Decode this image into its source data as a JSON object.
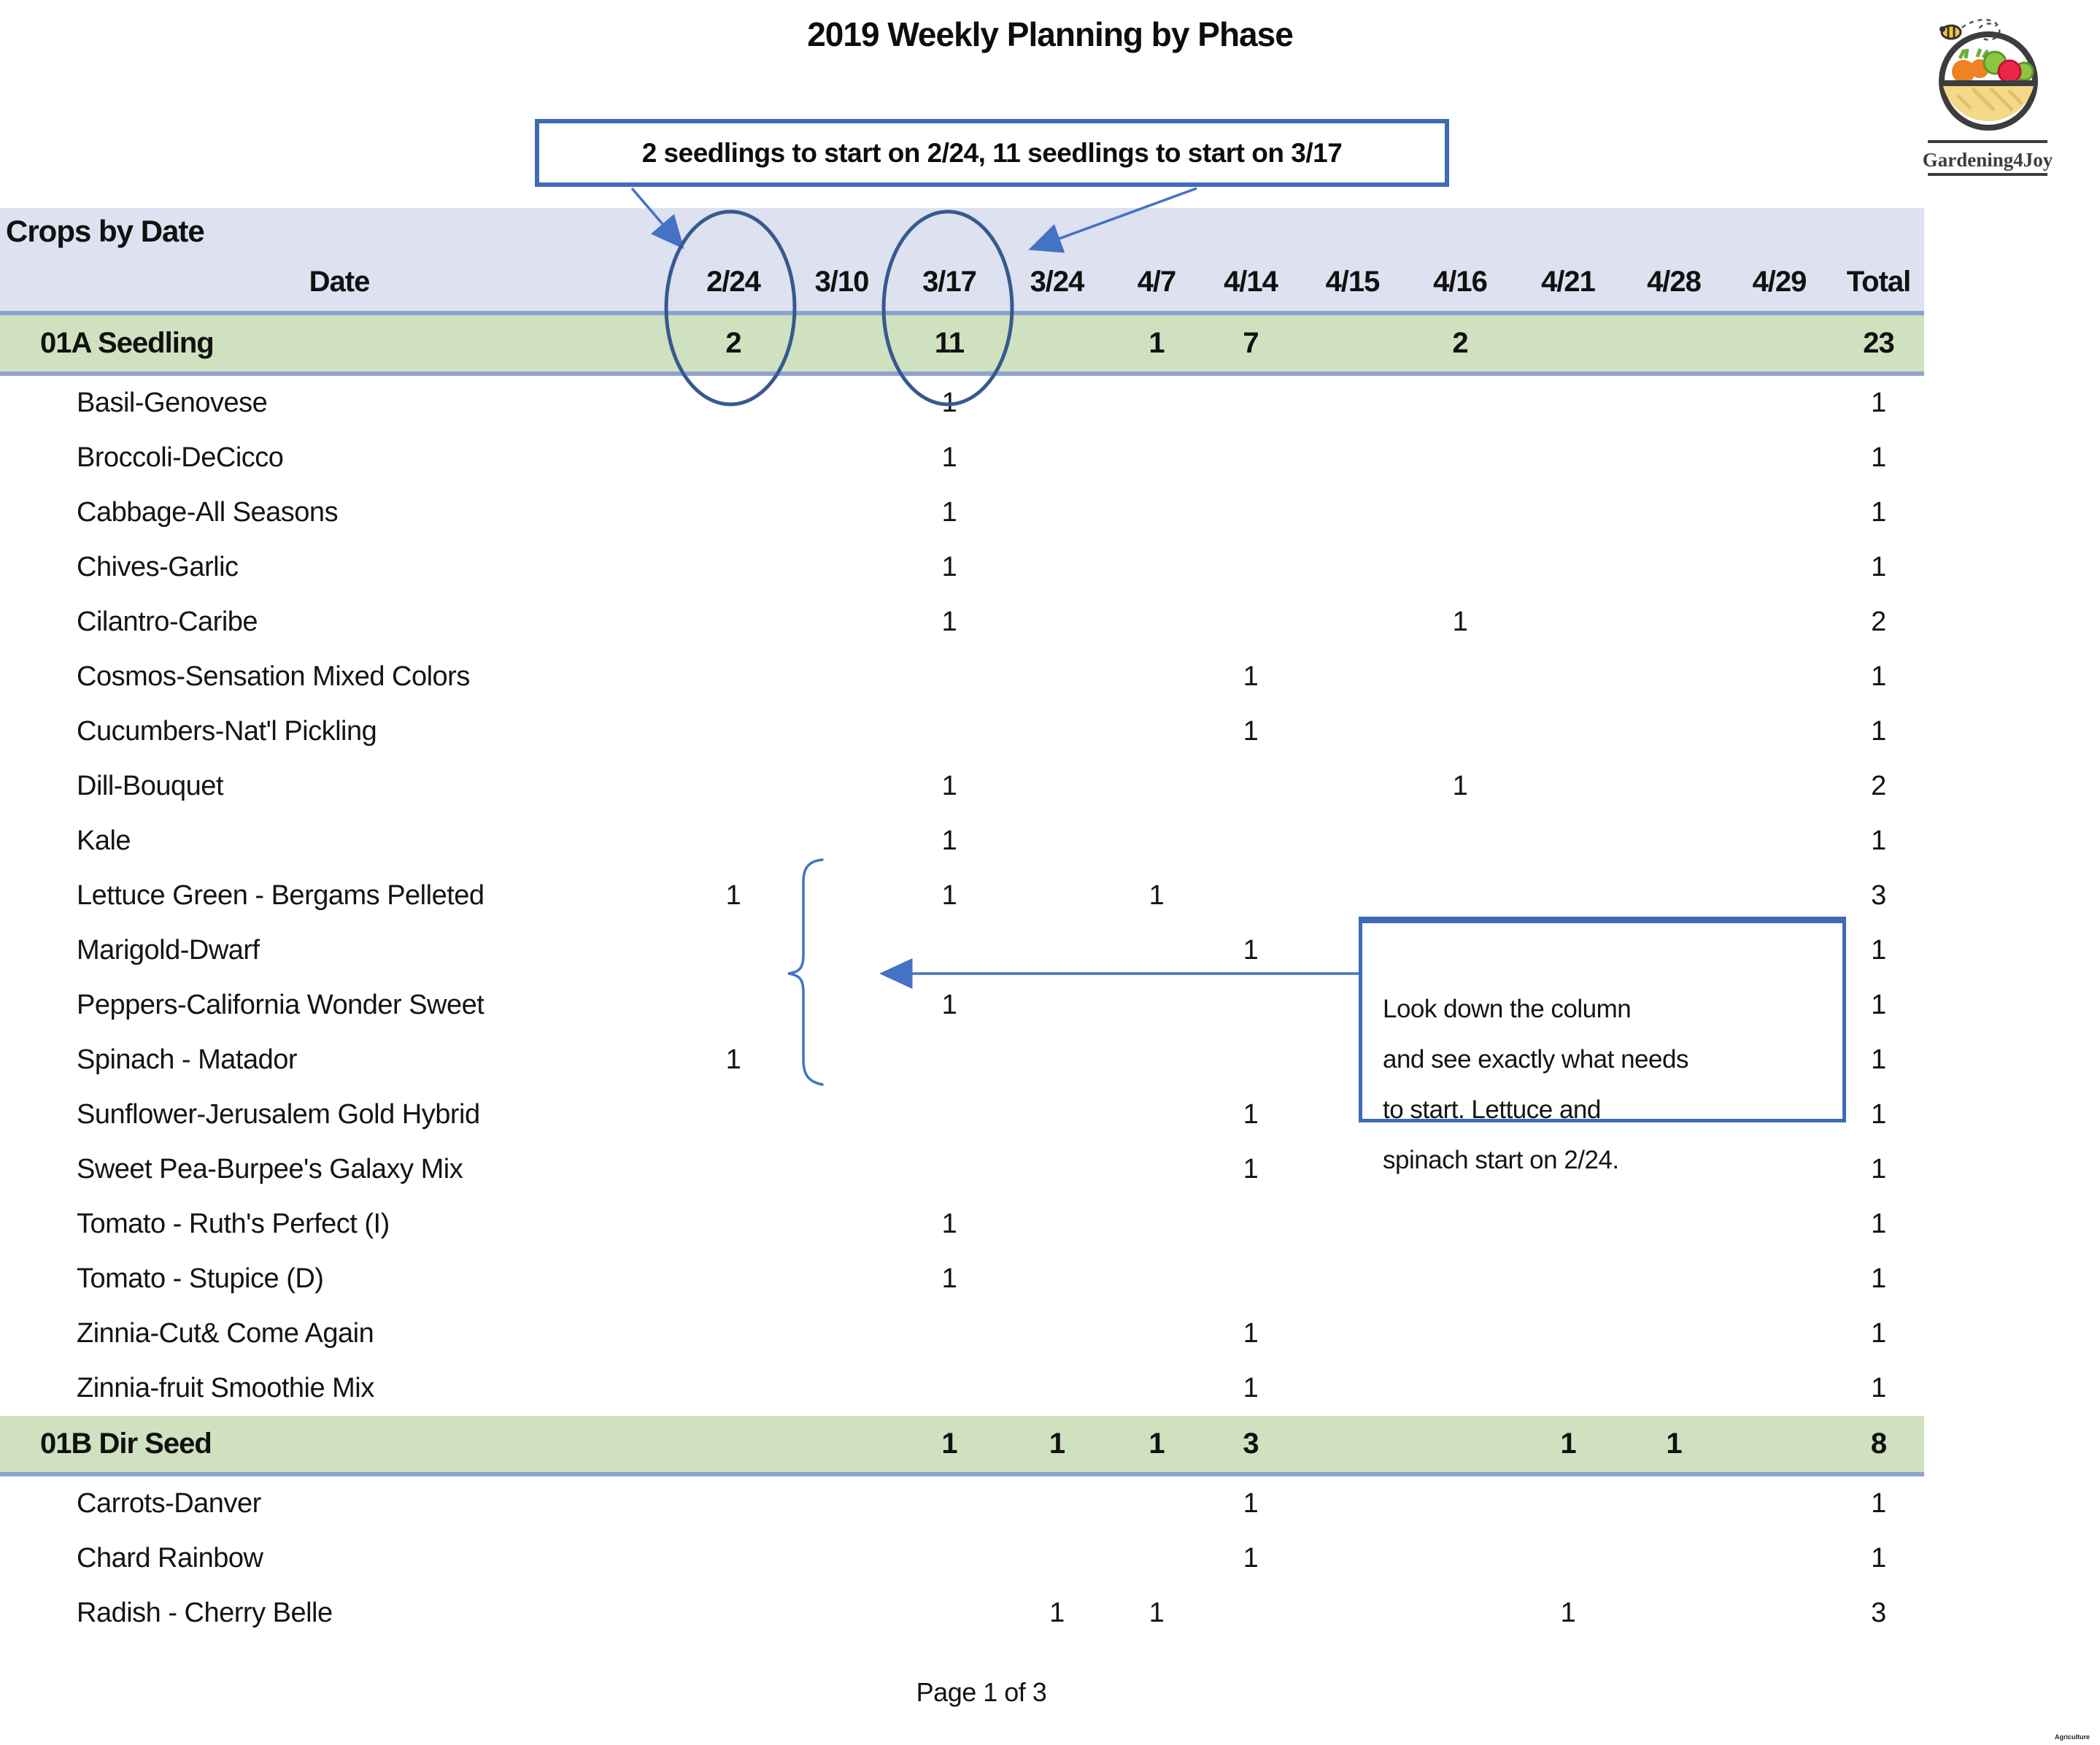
{
  "title": "2019 Weekly Planning by Phase",
  "logo": {
    "brand": "Gardening4Joy"
  },
  "annotations": {
    "top_callout": "2 seedlings to start on 2/24, 11 seedlings to start on 3/17",
    "side_callout": "Look down the column\nand see exactly what needs\nto start. Lettuce and\nspinach start on 2/24.",
    "accent_blue": "#4472c4",
    "circle_blue": "#37598f"
  },
  "table": {
    "corner_label": "Crops by Date",
    "row_header_label": "Date",
    "columns": [
      "2/24",
      "3/10",
      "3/17",
      "3/24",
      "4/7",
      "4/14",
      "4/15",
      "4/16",
      "4/21",
      "4/28",
      "4/29",
      "Total"
    ],
    "sections": [
      {
        "label": "01A Seedling",
        "totals": [
          "2",
          "",
          "11",
          "",
          "1",
          "7",
          "",
          "2",
          "",
          "",
          "",
          "23"
        ],
        "rows": [
          {
            "name": "Basil-Genovese",
            "values": [
              "",
              "",
              "1",
              "",
              "",
              "",
              "",
              "",
              "",
              "",
              "",
              "1"
            ]
          },
          {
            "name": "Broccoli-DeCicco",
            "values": [
              "",
              "",
              "1",
              "",
              "",
              "",
              "",
              "",
              "",
              "",
              "",
              "1"
            ]
          },
          {
            "name": "Cabbage-All Seasons",
            "values": [
              "",
              "",
              "1",
              "",
              "",
              "",
              "",
              "",
              "",
              "",
              "",
              "1"
            ]
          },
          {
            "name": "Chives-Garlic",
            "values": [
              "",
              "",
              "1",
              "",
              "",
              "",
              "",
              "",
              "",
              "",
              "",
              "1"
            ]
          },
          {
            "name": "Cilantro-Caribe",
            "values": [
              "",
              "",
              "1",
              "",
              "",
              "",
              "",
              "1",
              "",
              "",
              "",
              "2"
            ]
          },
          {
            "name": "Cosmos-Sensation Mixed Colors",
            "values": [
              "",
              "",
              "",
              "",
              "",
              "1",
              "",
              "",
              "",
              "",
              "",
              "1"
            ]
          },
          {
            "name": "Cucumbers-Nat'l Pickling",
            "values": [
              "",
              "",
              "",
              "",
              "",
              "1",
              "",
              "",
              "",
              "",
              "",
              "1"
            ]
          },
          {
            "name": "Dill-Bouquet",
            "values": [
              "",
              "",
              "1",
              "",
              "",
              "",
              "",
              "1",
              "",
              "",
              "",
              "2"
            ]
          },
          {
            "name": "Kale",
            "values": [
              "",
              "",
              "1",
              "",
              "",
              "",
              "",
              "",
              "",
              "",
              "",
              "1"
            ]
          },
          {
            "name": "Lettuce Green - Bergams Pelleted",
            "values": [
              "1",
              "",
              "1",
              "",
              "1",
              "",
              "",
              "",
              "",
              "",
              "",
              "3"
            ]
          },
          {
            "name": "Marigold-Dwarf",
            "values": [
              "",
              "",
              "",
              "",
              "",
              "1",
              "",
              "",
              "",
              "",
              "",
              "1"
            ]
          },
          {
            "name": "Peppers-California Wonder Sweet",
            "values": [
              "",
              "",
              "1",
              "",
              "",
              "",
              "",
              "",
              "",
              "",
              "",
              "1"
            ]
          },
          {
            "name": "Spinach - Matador",
            "values": [
              "1",
              "",
              "",
              "",
              "",
              "",
              "",
              "",
              "",
              "",
              "",
              "1"
            ]
          },
          {
            "name": "Sunflower-Jerusalem Gold Hybrid",
            "values": [
              "",
              "",
              "",
              "",
              "",
              "1",
              "",
              "",
              "",
              "",
              "",
              "1"
            ]
          },
          {
            "name": "Sweet Pea-Burpee's Galaxy Mix",
            "values": [
              "",
              "",
              "",
              "",
              "",
              "1",
              "",
              "",
              "",
              "",
              "",
              "1"
            ]
          },
          {
            "name": "Tomato - Ruth's Perfect (I)",
            "values": [
              "",
              "",
              "1",
              "",
              "",
              "",
              "",
              "",
              "",
              "",
              "",
              "1"
            ]
          },
          {
            "name": "Tomato - Stupice (D)",
            "values": [
              "",
              "",
              "1",
              "",
              "",
              "",
              "",
              "",
              "",
              "",
              "",
              "1"
            ]
          },
          {
            "name": "Zinnia-Cut& Come Again",
            "values": [
              "",
              "",
              "",
              "",
              "",
              "1",
              "",
              "",
              "",
              "",
              "",
              "1"
            ]
          },
          {
            "name": "Zinnia-fruit Smoothie Mix",
            "values": [
              "",
              "",
              "",
              "",
              "",
              "1",
              "",
              "",
              "",
              "",
              "",
              "1"
            ]
          }
        ]
      },
      {
        "label": "01B Dir Seed",
        "totals": [
          "",
          "",
          "1",
          "1",
          "1",
          "3",
          "",
          "",
          "1",
          "1",
          "",
          "8"
        ],
        "rows": [
          {
            "name": "Carrots-Danver",
            "values": [
              "",
              "",
              "",
              "",
              "",
              "1",
              "",
              "",
              "",
              "",
              "",
              "1"
            ]
          },
          {
            "name": "Chard Rainbow",
            "values": [
              "",
              "",
              "",
              "",
              "",
              "1",
              "",
              "",
              "",
              "",
              "",
              "1"
            ]
          },
          {
            "name": "Radish - Cherry Belle",
            "values": [
              "",
              "",
              "",
              "1",
              "1",
              "",
              "",
              "",
              "1",
              "",
              "",
              "3"
            ]
          }
        ]
      }
    ]
  },
  "footer": {
    "page_label": "Page 1 of 3",
    "watermark": "Agriculture"
  }
}
